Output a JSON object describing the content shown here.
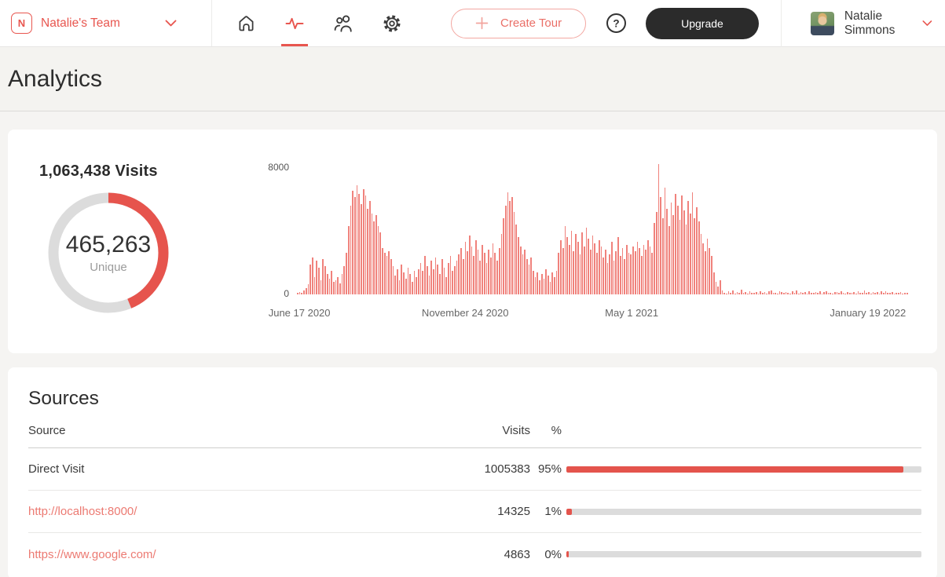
{
  "colors": {
    "accent": "#e8564f",
    "bar": "#f0827c",
    "donut_ring": "#e6544d",
    "track": "#dcdcdc",
    "progress": "#e4544c",
    "link": "#ec7a72",
    "upgrade_bg": "#2b2b2b"
  },
  "nav": {
    "logo_letter": "N",
    "team_name": "Natalie's Team",
    "icon_names": [
      "home-icon",
      "analytics-pulse-icon",
      "teammates-icon",
      "settings-gear-icon"
    ],
    "active_icon": "analytics-pulse-icon",
    "create_tour_label": "Create Tour",
    "help_glyph": "?",
    "upgrade_label": "Upgrade",
    "user_name": "Natalie Simmons"
  },
  "page": {
    "title": "Analytics"
  },
  "chart_data": [
    {
      "type": "donut",
      "title": "1,063,438 Visits",
      "total_visits": 1063438,
      "unique_visits": 465263,
      "center_value": "465,263",
      "center_label": "Unique",
      "fraction": 0.4375,
      "ring_color": "#e6544d",
      "track_color": "#dcdcdc"
    },
    {
      "type": "bar",
      "title": "Visits over time",
      "xlabel": "",
      "ylabel": "",
      "ylim": [
        0,
        8000
      ],
      "y_tick_top": "8000",
      "y_tick_bottom": "0",
      "grid": false,
      "bar_color": "#f0827c",
      "x_ticks": [
        {
          "label": "June 17 2020",
          "pos": 0.004
        },
        {
          "label": "November 24 2020",
          "pos": 0.275
        },
        {
          "label": "May 1 2021",
          "pos": 0.547
        },
        {
          "label": "January 19 2022",
          "pos": 0.933
        }
      ],
      "values": [
        80,
        150,
        100,
        250,
        420,
        650,
        1900,
        2300,
        1100,
        2100,
        1700,
        900,
        2200,
        1800,
        1300,
        1000,
        1500,
        800,
        900,
        1100,
        700,
        1300,
        1800,
        2600,
        4300,
        5600,
        6500,
        6100,
        6870,
        6300,
        5700,
        6600,
        6200,
        5400,
        5900,
        5100,
        4600,
        5000,
        4300,
        3900,
        2900,
        2600,
        2400,
        2700,
        2200,
        1800,
        1200,
        1600,
        900,
        1900,
        1400,
        1000,
        1700,
        1300,
        800,
        1500,
        1100,
        1600,
        2000,
        1500,
        2400,
        1800,
        1200,
        2100,
        1600,
        2300,
        1900,
        1300,
        2200,
        1700,
        1100,
        2000,
        2400,
        1500,
        1800,
        2100,
        2500,
        2900,
        2200,
        3300,
        2700,
        3700,
        3000,
        2400,
        3400,
        2800,
        2100,
        3100,
        2600,
        2000,
        2800,
        2300,
        3200,
        2600,
        2100,
        2900,
        3800,
        4800,
        5600,
        6400,
        5900,
        6100,
        5200,
        4400,
        3600,
        3000,
        2500,
        2800,
        2200,
        1900,
        2300,
        1500,
        1100,
        1400,
        900,
        1300,
        1000,
        1600,
        1200,
        800,
        1400,
        1100,
        1500,
        2600,
        3400,
        2900,
        4300,
        3600,
        3100,
        4000,
        2700,
        3800,
        3300,
        2500,
        3900,
        3000,
        4200,
        3500,
        2800,
        3700,
        3200,
        2600,
        3400,
        3000,
        2300,
        2800,
        2000,
        2500,
        3300,
        2100,
        2700,
        3600,
        2400,
        2900,
        2200,
        3100,
        2600,
        2500,
        3000,
        2700,
        3300,
        2900,
        2400,
        3100,
        2800,
        3400,
        3000,
        2600,
        4500,
        5200,
        8200,
        6100,
        4800,
        6700,
        5400,
        4300,
        5800,
        5000,
        6300,
        5600,
        4700,
        6200,
        5300,
        4400,
        5900,
        5100,
        6400,
        4800,
        5500,
        4600,
        3800,
        3200,
        2700,
        3500,
        2900,
        2400,
        1400,
        800,
        500,
        900,
        250,
        120,
        60,
        180,
        90,
        260,
        70,
        150,
        100,
        300,
        80,
        130,
        60,
        200,
        110,
        90,
        160,
        70,
        220,
        100,
        140,
        60,
        180,
        250,
        90,
        120,
        70,
        200,
        130,
        80,
        160,
        100,
        60,
        190,
        110,
        240,
        70,
        140,
        90,
        170,
        60,
        210,
        120,
        80,
        150,
        100,
        180,
        70,
        130,
        220,
        90,
        110,
        60,
        160,
        140,
        80,
        200,
        100,
        70,
        170,
        120,
        90,
        150,
        60,
        190,
        110,
        80,
        230,
        100,
        130,
        70,
        160,
        90,
        140,
        60,
        180,
        110,
        200,
        80,
        120,
        150,
        70,
        100,
        90,
        130,
        60,
        110,
        80
      ]
    }
  ],
  "sources_card": {
    "title": "Sources",
    "columns": {
      "source": "Source",
      "visits": "Visits",
      "pct": "%"
    },
    "rows": [
      {
        "source": "Direct Visit",
        "visits": "1005383",
        "pct": "95%",
        "fill_pct": 95,
        "is_link": false
      },
      {
        "source": "http://localhost:8000/",
        "visits": "14325",
        "pct": "1%",
        "fill_pct": 1.5,
        "is_link": true
      },
      {
        "source": "https://www.google.com/",
        "visits": "4863",
        "pct": "0%",
        "fill_pct": 0.7,
        "is_link": true
      }
    ]
  }
}
